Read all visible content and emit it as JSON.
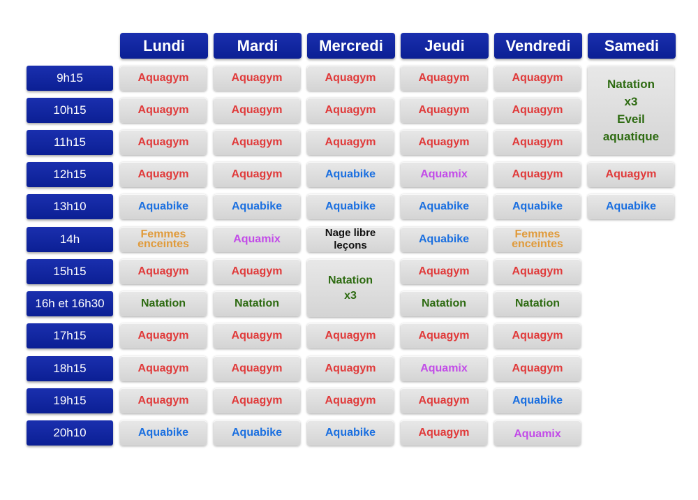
{
  "days": [
    "Lundi",
    "Mardi",
    "Mercredi",
    "Jeudi",
    "Vendredi",
    "Samedi"
  ],
  "times": [
    "9h15",
    "10h15",
    "11h15",
    "12h15",
    "13h10",
    "14h",
    "15h15",
    "16h et 16h30",
    "17h15",
    "18h15",
    "19h15",
    "20h10"
  ],
  "activities": {
    "aquagym": "Aquagym",
    "aquabike": "Aquabike",
    "aquamix": "Aquamix",
    "natation": "Natation",
    "femmes_line1": "Femmes",
    "femmes_line2": "enceintes",
    "nage_libre": "Nage libre leçons",
    "x3": "x3",
    "eveil_line1": "Eveil",
    "eveil_line2": "aquatique"
  },
  "colors": {
    "header_blue": "#0b1f94",
    "aquagym": "#e03a3a",
    "aquabike": "#1a6fe0",
    "aquamix": "#c24be8",
    "natation": "#2e6b12",
    "femmes_enceintes": "#e09a3a",
    "nage_libre": "#111111",
    "cell_grey": "#dcdcdc"
  },
  "schedule": {
    "lundi": [
      "Aquagym",
      "Aquagym",
      "Aquagym",
      "Aquagym",
      "Aquabike",
      "Femmes enceintes",
      "Aquagym",
      "Natation",
      "Aquagym",
      "Aquagym",
      "Aquagym",
      "Aquabike"
    ],
    "mardi": [
      "Aquagym",
      "Aquagym",
      "Aquagym",
      "Aquagym",
      "Aquabike",
      "Aquamix",
      "Aquagym",
      "Natation",
      "Aquagym",
      "Aquagym",
      "Aquagym",
      "Aquabike"
    ],
    "mercredi": [
      "Aquagym",
      "Aquagym",
      "Aquagym",
      "Aquabike",
      "Aquabike",
      "Nage libre leçons",
      "Natation x3",
      "Natation x3",
      "Aquagym",
      "Aquagym",
      "Aquagym",
      "Aquabike"
    ],
    "jeudi": [
      "Aquagym",
      "Aquagym",
      "Aquagym",
      "Aquamix",
      "Aquabike",
      "Aquabike",
      "Aquagym",
      "Natation",
      "Aquagym",
      "Aquamix",
      "Aquagym",
      "Aquagym"
    ],
    "vendredi": [
      "Aquagym",
      "Aquagym",
      "Aquagym",
      "Aquagym",
      "Aquabike",
      "Femmes enceintes",
      "Aquagym",
      "Natation",
      "Aquagym",
      "Aquagym",
      "Aquabike",
      "Aquamix"
    ],
    "samedi": [
      "Natation x3 Eveil aquatique",
      "Natation x3 Eveil aquatique",
      "Natation x3 Eveil aquatique",
      "Aquagym",
      "Aquabike"
    ]
  }
}
